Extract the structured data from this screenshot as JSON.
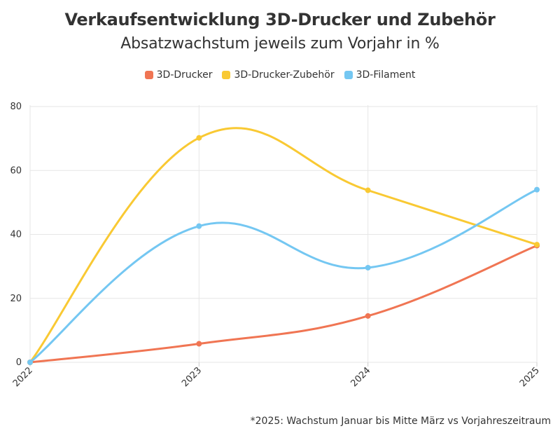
{
  "chart_data": {
    "type": "line",
    "title": "Verkaufsentwicklung 3D-Drucker und Zubehör",
    "subtitle": "Absatzwachstum jeweils zum Vorjahr in %",
    "footnote": "*2025: Wachstum Januar bis Mitte März vs Vorjahreszeitraum",
    "categories": [
      "2022",
      "2023",
      "2024",
      "2025"
    ],
    "ylim": [
      0,
      80
    ],
    "yticks": [
      0,
      20,
      40,
      60,
      80
    ],
    "grid": true,
    "smooth": true,
    "legend_position": "top-center",
    "series": [
      {
        "name": "3D-Drucker",
        "color": "#f07553",
        "values": [
          0,
          5.8,
          14.5,
          36.5
        ]
      },
      {
        "name": "3D-Drucker-Zubehör",
        "color": "#f9c933",
        "values": [
          0,
          70.2,
          53.8,
          36.8
        ]
      },
      {
        "name": "3D-Filament",
        "color": "#74c7f2",
        "values": [
          0,
          42.6,
          29.6,
          54.0
        ]
      }
    ]
  }
}
